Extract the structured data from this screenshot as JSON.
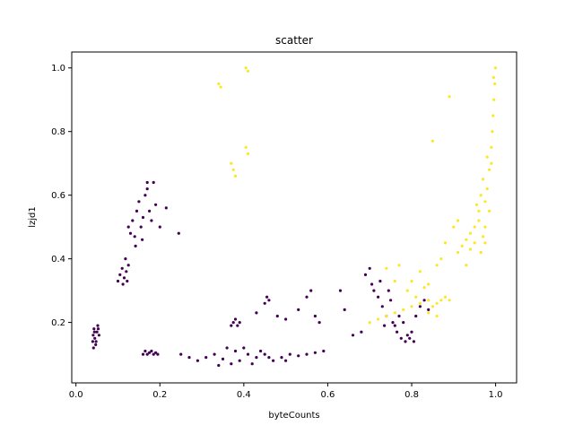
{
  "chart_data": {
    "type": "scatter",
    "title": "scatter",
    "xlabel": "byteCounts",
    "ylabel": "lzjd1",
    "xlim": [
      -0.01,
      1.05
    ],
    "ylim": [
      0.01,
      1.05
    ],
    "xticks": [
      0.0,
      0.2,
      0.4,
      0.6,
      0.8,
      1.0
    ],
    "xtick_labels": [
      "0.0",
      "0.2",
      "0.4",
      "0.6",
      "0.8",
      "1.0"
    ],
    "yticks": [
      0.2,
      0.4,
      0.6,
      0.8,
      1.0
    ],
    "ytick_labels": [
      "0.2",
      "0.4",
      "0.6",
      "0.8",
      "1.0"
    ],
    "grid": false,
    "legend": "none",
    "colors": {
      "class0": "#440154",
      "class1": "#fde725"
    },
    "series": [
      {
        "color": "#440154",
        "points": [
          [
            0.04,
            0.14
          ],
          [
            0.041,
            0.16
          ],
          [
            0.042,
            0.12
          ],
          [
            0.043,
            0.18
          ],
          [
            0.045,
            0.15
          ],
          [
            0.047,
            0.13
          ],
          [
            0.05,
            0.17
          ],
          [
            0.052,
            0.19
          ],
          [
            0.055,
            0.16
          ],
          [
            0.048,
            0.14
          ],
          [
            0.044,
            0.17
          ],
          [
            0.053,
            0.18
          ],
          [
            0.1,
            0.33
          ],
          [
            0.105,
            0.35
          ],
          [
            0.11,
            0.37
          ],
          [
            0.115,
            0.34
          ],
          [
            0.12,
            0.36
          ],
          [
            0.125,
            0.38
          ],
          [
            0.118,
            0.4
          ],
          [
            0.112,
            0.32
          ],
          [
            0.122,
            0.33
          ],
          [
            0.125,
            0.5
          ],
          [
            0.13,
            0.48
          ],
          [
            0.135,
            0.52
          ],
          [
            0.14,
            0.47
          ],
          [
            0.145,
            0.55
          ],
          [
            0.15,
            0.58
          ],
          [
            0.155,
            0.5
          ],
          [
            0.16,
            0.53
          ],
          [
            0.165,
            0.6
          ],
          [
            0.17,
            0.62
          ],
          [
            0.175,
            0.55
          ],
          [
            0.18,
            0.52
          ],
          [
            0.185,
            0.64
          ],
          [
            0.19,
            0.57
          ],
          [
            0.2,
            0.5
          ],
          [
            0.215,
            0.56
          ],
          [
            0.245,
            0.48
          ],
          [
            0.17,
            0.64
          ],
          [
            0.158,
            0.46
          ],
          [
            0.142,
            0.44
          ],
          [
            0.16,
            0.1
          ],
          [
            0.165,
            0.11
          ],
          [
            0.17,
            0.1
          ],
          [
            0.175,
            0.105
          ],
          [
            0.18,
            0.11
          ],
          [
            0.185,
            0.1
          ],
          [
            0.19,
            0.105
          ],
          [
            0.195,
            0.1
          ],
          [
            0.25,
            0.1
          ],
          [
            0.27,
            0.09
          ],
          [
            0.29,
            0.08
          ],
          [
            0.31,
            0.09
          ],
          [
            0.33,
            0.1
          ],
          [
            0.35,
            0.085
          ],
          [
            0.37,
            0.07
          ],
          [
            0.39,
            0.08
          ],
          [
            0.41,
            0.1
          ],
          [
            0.43,
            0.09
          ],
          [
            0.45,
            0.1
          ],
          [
            0.47,
            0.08
          ],
          [
            0.49,
            0.09
          ],
          [
            0.51,
            0.1
          ],
          [
            0.53,
            0.095
          ],
          [
            0.55,
            0.1
          ],
          [
            0.57,
            0.105
          ],
          [
            0.59,
            0.11
          ],
          [
            0.36,
            0.12
          ],
          [
            0.38,
            0.11
          ],
          [
            0.4,
            0.12
          ],
          [
            0.44,
            0.11
          ],
          [
            0.46,
            0.09
          ],
          [
            0.5,
            0.08
          ],
          [
            0.34,
            0.065
          ],
          [
            0.42,
            0.07
          ],
          [
            0.37,
            0.19
          ],
          [
            0.375,
            0.2
          ],
          [
            0.38,
            0.21
          ],
          [
            0.385,
            0.19
          ],
          [
            0.39,
            0.2
          ],
          [
            0.43,
            0.23
          ],
          [
            0.45,
            0.26
          ],
          [
            0.455,
            0.28
          ],
          [
            0.46,
            0.27
          ],
          [
            0.48,
            0.22
          ],
          [
            0.5,
            0.21
          ],
          [
            0.53,
            0.24
          ],
          [
            0.55,
            0.28
          ],
          [
            0.56,
            0.3
          ],
          [
            0.57,
            0.22
          ],
          [
            0.58,
            0.2
          ],
          [
            0.63,
            0.3
          ],
          [
            0.64,
            0.24
          ],
          [
            0.66,
            0.16
          ],
          [
            0.68,
            0.17
          ],
          [
            0.69,
            0.35
          ],
          [
            0.7,
            0.37
          ],
          [
            0.705,
            0.32
          ],
          [
            0.71,
            0.3
          ],
          [
            0.72,
            0.28
          ],
          [
            0.725,
            0.33
          ],
          [
            0.73,
            0.25
          ],
          [
            0.735,
            0.19
          ],
          [
            0.74,
            0.22
          ],
          [
            0.745,
            0.3
          ],
          [
            0.75,
            0.27
          ],
          [
            0.76,
            0.19
          ],
          [
            0.765,
            0.17
          ],
          [
            0.77,
            0.22
          ],
          [
            0.78,
            0.2
          ],
          [
            0.785,
            0.14
          ],
          [
            0.79,
            0.16
          ],
          [
            0.795,
            0.15
          ],
          [
            0.8,
            0.17
          ],
          [
            0.81,
            0.22
          ],
          [
            0.82,
            0.25
          ],
          [
            0.83,
            0.27
          ],
          [
            0.84,
            0.24
          ],
          [
            0.755,
            0.2
          ],
          [
            0.775,
            0.15
          ],
          [
            0.805,
            0.14
          ]
        ]
      },
      {
        "color": "#fde725",
        "points": [
          [
            0.34,
            0.95
          ],
          [
            0.345,
            0.94
          ],
          [
            0.405,
            1.0
          ],
          [
            0.41,
            0.99
          ],
          [
            0.37,
            0.7
          ],
          [
            0.375,
            0.68
          ],
          [
            0.38,
            0.66
          ],
          [
            0.405,
            0.75
          ],
          [
            0.41,
            0.73
          ],
          [
            0.7,
            0.2
          ],
          [
            0.72,
            0.21
          ],
          [
            0.74,
            0.22
          ],
          [
            0.76,
            0.23
          ],
          [
            0.78,
            0.24
          ],
          [
            0.8,
            0.25
          ],
          [
            0.82,
            0.26
          ],
          [
            0.84,
            0.27
          ],
          [
            0.85,
            0.25
          ],
          [
            0.86,
            0.26
          ],
          [
            0.87,
            0.27
          ],
          [
            0.88,
            0.28
          ],
          [
            0.89,
            0.27
          ],
          [
            0.84,
            0.23
          ],
          [
            0.86,
            0.22
          ],
          [
            0.77,
            0.38
          ],
          [
            0.8,
            0.33
          ],
          [
            0.82,
            0.36
          ],
          [
            0.83,
            0.31
          ],
          [
            0.85,
            0.77
          ],
          [
            0.87,
            0.4
          ],
          [
            0.89,
            0.91
          ],
          [
            0.9,
            0.5
          ],
          [
            0.91,
            0.42
          ],
          [
            0.92,
            0.44
          ],
          [
            0.93,
            0.46
          ],
          [
            0.94,
            0.48
          ],
          [
            0.95,
            0.45
          ],
          [
            0.96,
            0.55
          ],
          [
            0.965,
            0.6
          ],
          [
            0.97,
            0.65
          ],
          [
            0.975,
            0.58
          ],
          [
            0.98,
            0.62
          ],
          [
            0.985,
            0.68
          ],
          [
            0.99,
            0.75
          ],
          [
            0.992,
            0.8
          ],
          [
            0.994,
            0.85
          ],
          [
            0.996,
            0.9
          ],
          [
            0.998,
            0.95
          ],
          [
            1.0,
            1.0
          ],
          [
            0.995,
            0.97
          ],
          [
            0.985,
            0.55
          ],
          [
            0.975,
            0.5
          ],
          [
            0.97,
            0.47
          ],
          [
            0.96,
            0.52
          ],
          [
            0.955,
            0.57
          ],
          [
            0.99,
            0.7
          ],
          [
            0.98,
            0.72
          ],
          [
            0.975,
            0.45
          ],
          [
            0.965,
            0.42
          ],
          [
            0.95,
            0.5
          ],
          [
            0.94,
            0.43
          ],
          [
            0.93,
            0.38
          ],
          [
            0.91,
            0.52
          ],
          [
            0.88,
            0.45
          ],
          [
            0.86,
            0.38
          ],
          [
            0.84,
            0.32
          ],
          [
            0.81,
            0.28
          ],
          [
            0.79,
            0.3
          ],
          [
            0.76,
            0.33
          ],
          [
            0.74,
            0.37
          ]
        ]
      }
    ]
  }
}
